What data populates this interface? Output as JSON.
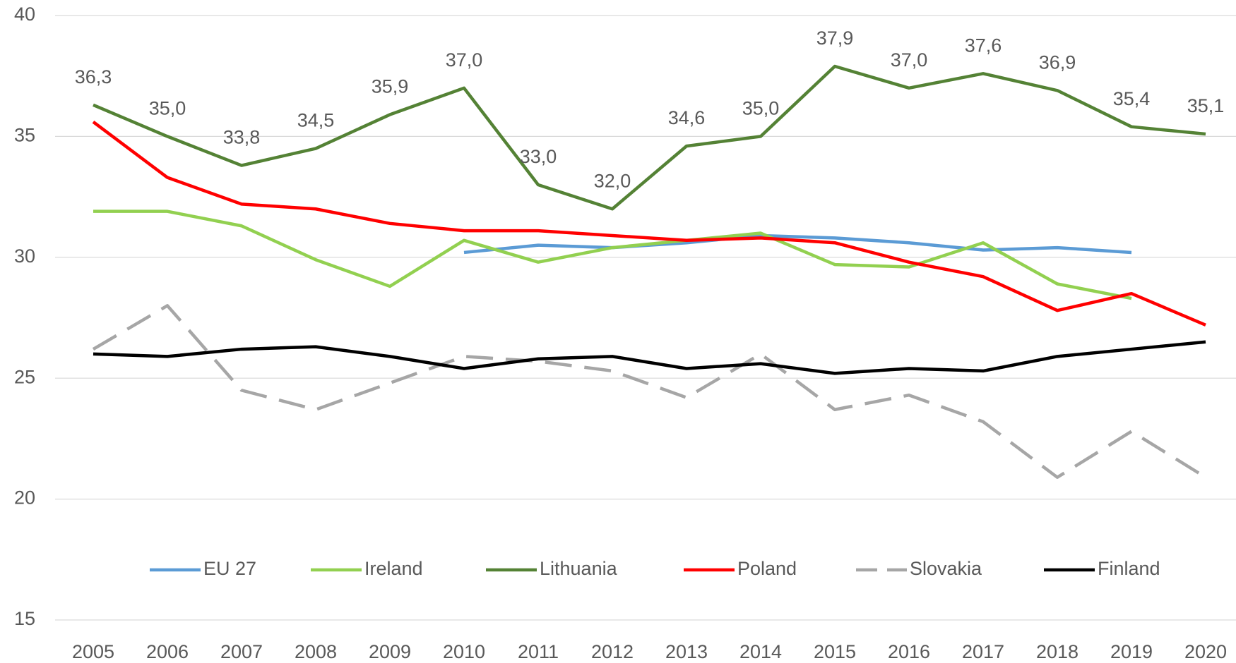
{
  "chart_data": {
    "type": "line",
    "categories": [
      "2005",
      "2006",
      "2007",
      "2008",
      "2009",
      "2010",
      "2011",
      "2012",
      "2013",
      "2014",
      "2015",
      "2016",
      "2017",
      "2018",
      "2019",
      "2020"
    ],
    "ylim": [
      15,
      40
    ],
    "yticks": [
      15,
      20,
      25,
      30,
      35,
      40
    ],
    "grid": true,
    "legend": "bottom",
    "series": [
      {
        "name": "EU 27",
        "color": "#5b9bd5",
        "values": [
          null,
          null,
          null,
          null,
          null,
          30.2,
          30.5,
          30.4,
          30.6,
          30.9,
          30.8,
          30.6,
          30.3,
          30.4,
          30.2,
          null
        ]
      },
      {
        "name": "Ireland",
        "color": "#92d050",
        "values": [
          31.9,
          31.9,
          31.3,
          29.9,
          28.8,
          30.7,
          29.8,
          30.4,
          30.7,
          31.0,
          29.7,
          29.6,
          30.6,
          28.9,
          28.3,
          null
        ]
      },
      {
        "name": "Lithuania",
        "color": "#548235",
        "values": [
          36.3,
          35.0,
          33.8,
          34.5,
          35.9,
          37.0,
          33.0,
          32.0,
          34.6,
          35.0,
          37.9,
          37.0,
          37.6,
          36.9,
          35.4,
          35.1
        ],
        "value_labels": [
          "36,3",
          "35,0",
          "33,8",
          "34,5",
          "35,9",
          "37,0",
          "33,0",
          "32,0",
          "34,6",
          "35,0",
          "37,9",
          "37,0",
          "37,6",
          "36,9",
          "35,4",
          "35,1"
        ]
      },
      {
        "name": "Poland",
        "color": "#ff0000",
        "values": [
          35.6,
          33.3,
          32.2,
          32.0,
          31.4,
          31.1,
          31.1,
          30.9,
          30.7,
          30.8,
          30.6,
          29.8,
          29.2,
          27.8,
          28.5,
          27.2
        ]
      },
      {
        "name": "Slovakia",
        "color": "#a6a6a6",
        "dashed": true,
        "values": [
          26.2,
          28.0,
          24.5,
          23.7,
          24.8,
          25.9,
          25.7,
          25.3,
          24.2,
          26.0,
          23.7,
          24.3,
          23.2,
          20.9,
          22.8,
          20.9
        ]
      },
      {
        "name": "Finland",
        "color": "#000000",
        "values": [
          26.0,
          25.9,
          26.2,
          26.3,
          25.9,
          25.4,
          25.8,
          25.9,
          25.4,
          25.6,
          25.2,
          25.4,
          25.3,
          25.9,
          26.2,
          26.5
        ]
      }
    ]
  }
}
